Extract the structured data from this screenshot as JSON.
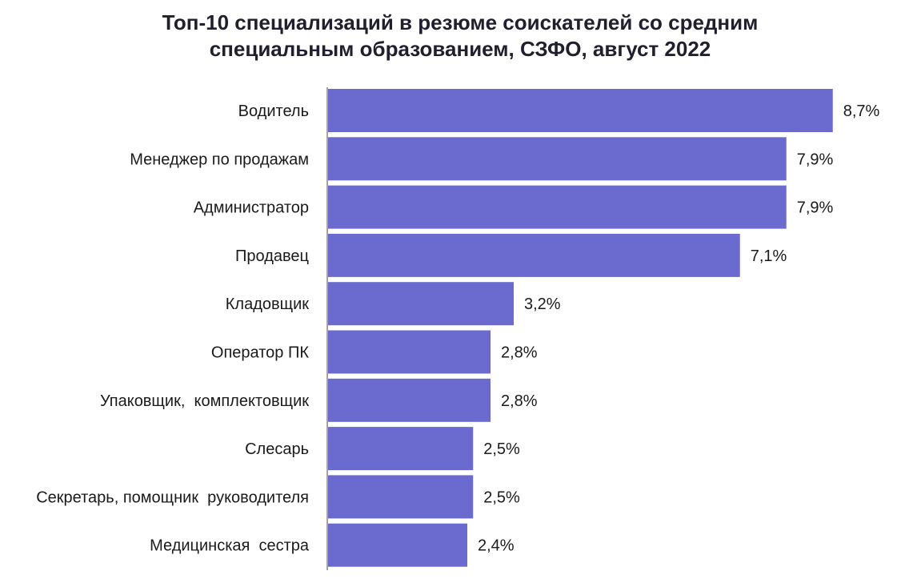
{
  "chart_data": {
    "type": "bar",
    "orientation": "horizontal",
    "title_lines": [
      "Топ-10 специализаций в резюме соискателей со средним",
      "специальным образованием, СЗФО, август 2022"
    ],
    "categories": [
      "Водитель",
      "Менеджер по продажам",
      "Администратор",
      "Продавец",
      "Кладовщик",
      "Оператор ПК",
      "Упаковщик,  комплектовщик",
      "Слесарь",
      "Секретарь, помощник  руководителя",
      "Медицинская  сестра"
    ],
    "values": [
      8.7,
      7.9,
      7.9,
      7.1,
      3.2,
      2.8,
      2.8,
      2.5,
      2.5,
      2.4
    ],
    "value_labels": [
      "8,7%",
      "7,9%",
      "7,9%",
      "7,1%",
      "3,2%",
      "2,8%",
      "2,8%",
      "2,5%",
      "2,5%",
      "2,4%"
    ],
    "bar_color": "#6b6bcf",
    "grid": false,
    "legend": "none"
  }
}
